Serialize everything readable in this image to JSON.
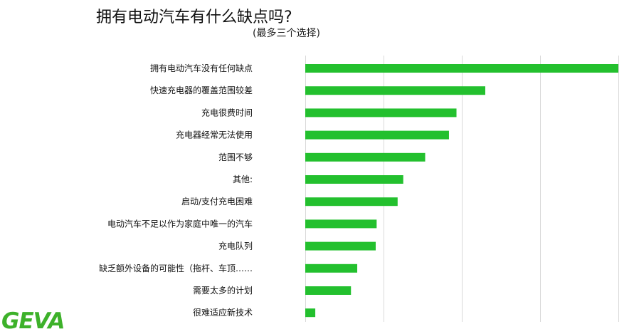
{
  "chart_data": {
    "type": "bar",
    "orientation": "horizontal",
    "title": "拥有电动汽车有什么缺点吗?",
    "subtitle": "(最多三个选择)",
    "categories": [
      "拥有电动汽车没有任何缺点",
      "快速充电器的覆盖范围较差",
      "充电很费时间",
      "充电器经常无法使用",
      "范围不够",
      "其他:",
      "启动/支付充电困难",
      "电动汽车不足以作为家庭中唯一的汽车",
      "充电队列",
      "缺乏额外设备的可能性（拖杆、车顶……",
      "需要太多的计划",
      "很难适应新技术"
    ],
    "values": [
      100,
      57.5,
      48.3,
      45.9,
      38.3,
      31.3,
      29.5,
      22.8,
      22.5,
      16.6,
      14.6,
      3.2
    ],
    "xlim": [
      0,
      100
    ],
    "grid": true,
    "bar_color": "#23c02e",
    "grid_color": "#d9d9d9"
  },
  "logo": {
    "text": "GEVA",
    "color": "#3db12a"
  }
}
